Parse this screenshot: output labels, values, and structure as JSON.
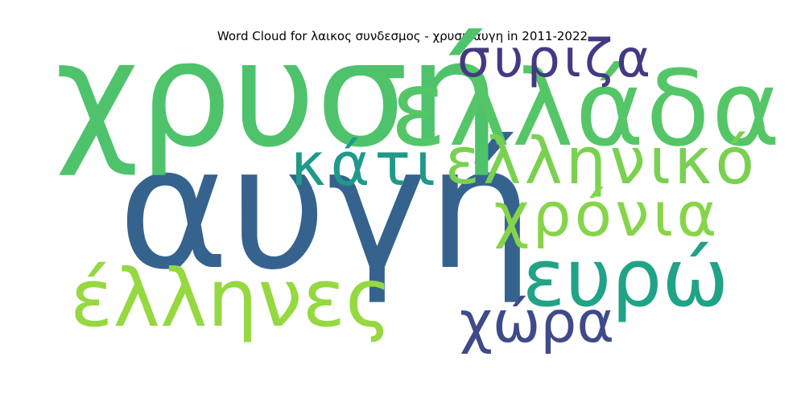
{
  "chart_data": {
    "type": "wordcloud",
    "title": "Word Cloud for λαικος συνδεσμος - χρυση αυγη in 2011-2022",
    "words": [
      {
        "text": "αυγή",
        "weight": 1.0,
        "color": "#35638e"
      },
      {
        "text": "χρυσή",
        "weight": 0.86,
        "color": "#4ec36b"
      },
      {
        "text": "ελλάδα",
        "weight": 0.62,
        "color": "#55c667"
      },
      {
        "text": "ευρώ",
        "weight": 0.47,
        "color": "#20a386"
      },
      {
        "text": "έλληνες",
        "weight": 0.47,
        "color": "#95d840"
      },
      {
        "text": "ελληνικό",
        "weight": 0.38,
        "color": "#7ad151"
      },
      {
        "text": "χρόνια",
        "weight": 0.36,
        "color": "#86d549"
      },
      {
        "text": "κάτι",
        "weight": 0.35,
        "color": "#1f9a8a"
      },
      {
        "text": "χώρα",
        "weight": 0.34,
        "color": "#3e4a89"
      },
      {
        "text": "συριζα",
        "weight": 0.31,
        "color": "#443983"
      }
    ]
  }
}
